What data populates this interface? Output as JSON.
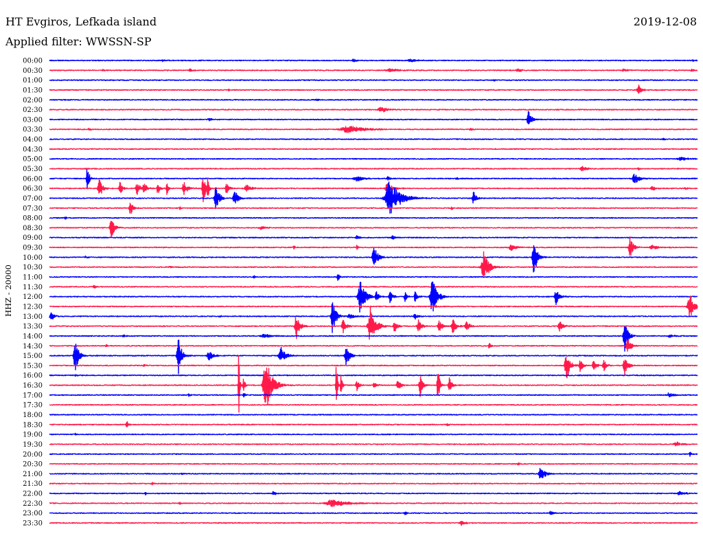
{
  "chart_data": {
    "type": "line",
    "title": "HT Evgiros, Lefkada island",
    "date": "2019-12-08",
    "filter_label": "Applied filter: WWSSN-SP",
    "ylabel": "HHZ - 20000",
    "row_labels": [
      "00:00",
      "00:30",
      "01:00",
      "01:30",
      "02:00",
      "02:30",
      "03:00",
      "03:30",
      "04:00",
      "04:30",
      "05:00",
      "05:30",
      "06:00",
      "06:30",
      "07:00",
      "07:30",
      "08:00",
      "08:30",
      "09:00",
      "09:30",
      "10:00",
      "10:30",
      "11:00",
      "11:30",
      "12:00",
      "12:30",
      "13:00",
      "13:30",
      "14:00",
      "14:30",
      "15:00",
      "15:30",
      "16:00",
      "16:30",
      "17:00",
      "17:30",
      "18:00",
      "18:30",
      "19:00",
      "19:30",
      "20:00",
      "20:30",
      "21:00",
      "21:30",
      "22:00",
      "22:30",
      "23:00",
      "23:30"
    ],
    "trace_colors": [
      "#0000ff",
      "#ff1a4a"
    ],
    "events": [
      {
        "time": "00:05:15",
        "amp": 2000,
        "dur_s": 10
      },
      {
        "time": "00:14:05",
        "amp": 4000,
        "dur_s": 20
      },
      {
        "time": "00:16:43",
        "amp": 3500,
        "dur_s": 30
      },
      {
        "time": "00:29:48",
        "amp": 2000,
        "dur_s": 10
      },
      {
        "time": "00:32:29",
        "amp": 2500,
        "dur_s": 10
      },
      {
        "time": "00:36:31",
        "amp": 4000,
        "dur_s": 15
      },
      {
        "time": "00:45:48",
        "amp": 3000,
        "dur_s": 60
      },
      {
        "time": "00:51:42",
        "amp": 3500,
        "dur_s": 30
      },
      {
        "time": "00:56:34",
        "amp": 3500,
        "dur_s": 20
      },
      {
        "time": "00:59:44",
        "amp": 3000,
        "dur_s": 10
      },
      {
        "time": "01:20:35",
        "amp": 1800,
        "dur_s": 10
      },
      {
        "time": "01:38:17",
        "amp": 3500,
        "dur_s": 8
      },
      {
        "time": "01:57:16",
        "amp": 12500,
        "dur_s": 20
      },
      {
        "time": "02:12:23",
        "amp": 2500,
        "dur_s": 10
      },
      {
        "time": "02:45:21",
        "amp": 6500,
        "dur_s": 40
      },
      {
        "time": "03:07:24",
        "amp": 3000,
        "dur_s": 20
      },
      {
        "time": "03:22:11",
        "amp": 18000,
        "dur_s": 20
      },
      {
        "time": "03:31:50",
        "amp": 2500,
        "dur_s": 10
      },
      {
        "time": "03:43:51",
        "amp": 7000,
        "dur_s": 100
      },
      {
        "time": "03:49:29",
        "amp": 2500,
        "dur_s": 15
      },
      {
        "time": "04:28:26",
        "amp": 3000,
        "dur_s": 8
      },
      {
        "time": "05:29:14",
        "amp": 4000,
        "dur_s": 40
      },
      {
        "time": "05:54:40",
        "amp": 5500,
        "dur_s": 30
      },
      {
        "time": "05:57:16",
        "amp": 3500,
        "dur_s": 10
      },
      {
        "time": "06:01:45",
        "amp": 37000,
        "dur_s": 10
      },
      {
        "time": "06:14:14",
        "amp": 6000,
        "dur_s": 40
      },
      {
        "time": "06:15:40",
        "amp": 4000,
        "dur_s": 20
      },
      {
        "time": "06:18:50",
        "amp": 3000,
        "dur_s": 10
      },
      {
        "time": "06:27:06",
        "amp": 11000,
        "dur_s": 30
      },
      {
        "time": "06:32:19",
        "amp": 20000,
        "dur_s": 20
      },
      {
        "time": "06:33:16",
        "amp": 15000,
        "dur_s": 15
      },
      {
        "time": "06:34:04",
        "amp": 13000,
        "dur_s": 20
      },
      {
        "time": "06:34:23",
        "amp": 16000,
        "dur_s": 15
      },
      {
        "time": "06:35:01",
        "amp": 12000,
        "dur_s": 15
      },
      {
        "time": "06:35:26",
        "amp": 17000,
        "dur_s": 10
      },
      {
        "time": "06:36:14",
        "amp": 17000,
        "dur_s": 20
      },
      {
        "time": "06:37:07",
        "amp": 45000,
        "dur_s": 12
      },
      {
        "time": "06:37:20",
        "amp": 25000,
        "dur_s": 10
      },
      {
        "time": "06:38:12",
        "amp": 13000,
        "dur_s": 15
      },
      {
        "time": "06:39:09",
        "amp": 8000,
        "dur_s": 30
      },
      {
        "time": "06:45:40",
        "amp": 12000,
        "dur_s": 30
      },
      {
        "time": "06:57:54",
        "amp": 6000,
        "dur_s": 20
      },
      {
        "time": "06:59:25",
        "amp": 5000,
        "dur_s": 10
      },
      {
        "time": "07:07:43",
        "amp": 28000,
        "dur_s": 20
      },
      {
        "time": "07:08:35",
        "amp": 18000,
        "dur_s": 20
      },
      {
        "time": "07:15:46",
        "amp": 40000,
        "dur_s": 60
      },
      {
        "time": "07:19:38",
        "amp": 15000,
        "dur_s": 15
      },
      {
        "time": "07:33:45",
        "amp": 17000,
        "dur_s": 15
      },
      {
        "time": "07:36:02",
        "amp": 4000,
        "dur_s": 10
      },
      {
        "time": "07:48:37",
        "amp": 3000,
        "dur_s": 10
      },
      {
        "time": "08:00:44",
        "amp": 3000,
        "dur_s": 10
      },
      {
        "time": "08:32:52",
        "amp": 22000,
        "dur_s": 20
      },
      {
        "time": "08:39:47",
        "amp": 3500,
        "dur_s": 30
      },
      {
        "time": "09:14:14",
        "amp": 5000,
        "dur_s": 15
      },
      {
        "time": "09:15:53",
        "amp": 5000,
        "dur_s": 15
      },
      {
        "time": "09:41:19",
        "amp": 4000,
        "dur_s": 10
      },
      {
        "time": "09:44:14",
        "amp": 5000,
        "dur_s": 8
      },
      {
        "time": "09:51:23",
        "amp": 7000,
        "dur_s": 30
      },
      {
        "time": "09:56:53",
        "amp": 24000,
        "dur_s": 20
      },
      {
        "time": "09:57:54",
        "amp": 5000,
        "dur_s": 30
      },
      {
        "time": "10:01:41",
        "amp": 3000,
        "dur_s": 10
      },
      {
        "time": "10:15:02",
        "amp": 21000,
        "dur_s": 25
      },
      {
        "time": "10:22:26",
        "amp": 42000,
        "dur_s": 20
      },
      {
        "time": "10:35:35",
        "amp": 3000,
        "dur_s": 10
      },
      {
        "time": "10:50:07",
        "amp": 34000,
        "dur_s": 30
      },
      {
        "time": "11:09:28",
        "amp": 3000,
        "dur_s": 10
      },
      {
        "time": "11:13:21",
        "amp": 10000,
        "dur_s": 10
      },
      {
        "time": "11:32:04",
        "amp": 6000,
        "dur_s": 10
      },
      {
        "time": "12:14:24",
        "amp": 36000,
        "dur_s": 30
      },
      {
        "time": "12:15:08",
        "amp": 12000,
        "dur_s": 15
      },
      {
        "time": "12:15:46",
        "amp": 14000,
        "dur_s": 15
      },
      {
        "time": "12:16:28",
        "amp": 10000,
        "dur_s": 15
      },
      {
        "time": "12:16:56",
        "amp": 11000,
        "dur_s": 15
      },
      {
        "time": "12:17:44",
        "amp": 39000,
        "dur_s": 30
      },
      {
        "time": "12:23:27",
        "amp": 17000,
        "dur_s": 20
      },
      {
        "time": "12:47:53",
        "amp": 3000,
        "dur_s": 10
      },
      {
        "time": "12:59:39",
        "amp": 24000,
        "dur_s": 30
      },
      {
        "time": "13:00:06",
        "amp": 8000,
        "dur_s": 20
      },
      {
        "time": "13:07:53",
        "amp": 3000,
        "dur_s": 10
      },
      {
        "time": "13:13:07",
        "amp": 39000,
        "dur_s": 20
      },
      {
        "time": "13:13:55",
        "amp": 6000,
        "dur_s": 30
      },
      {
        "time": "13:16:56",
        "amp": 6000,
        "dur_s": 20
      },
      {
        "time": "13:41:26",
        "amp": 28000,
        "dur_s": 20
      },
      {
        "time": "13:43:36",
        "amp": 14000,
        "dur_s": 20
      },
      {
        "time": "13:44:52",
        "amp": 42000,
        "dur_s": 30
      },
      {
        "time": "13:45:59",
        "amp": 12000,
        "dur_s": 20
      },
      {
        "time": "13:47:06",
        "amp": 14000,
        "dur_s": 20
      },
      {
        "time": "13:48:03",
        "amp": 12000,
        "dur_s": 20
      },
      {
        "time": "13:48:41",
        "amp": 16000,
        "dur_s": 20
      },
      {
        "time": "13:49:19",
        "amp": 10000,
        "dur_s": 20
      },
      {
        "time": "13:53:37",
        "amp": 13000,
        "dur_s": 20
      },
      {
        "time": "14:03:26",
        "amp": 3500,
        "dur_s": 10
      },
      {
        "time": "14:09:57",
        "amp": 5000,
        "dur_s": 40
      },
      {
        "time": "14:26:38",
        "amp": 34000,
        "dur_s": 20
      },
      {
        "time": "14:28:42",
        "amp": 3500,
        "dur_s": 30
      },
      {
        "time": "14:32:38",
        "amp": 3000,
        "dur_s": 10
      },
      {
        "time": "14:50:22",
        "amp": 8000,
        "dur_s": 10
      },
      {
        "time": "14:56:47",
        "amp": 15000,
        "dur_s": 20
      },
      {
        "time": "15:01:12",
        "amp": 36000,
        "dur_s": 20
      },
      {
        "time": "15:05:58",
        "amp": 40000,
        "dur_s": 20
      },
      {
        "time": "15:07:24",
        "amp": 9000,
        "dur_s": 30
      },
      {
        "time": "15:10:44",
        "amp": 17000,
        "dur_s": 30
      },
      {
        "time": "15:13:45",
        "amp": 24000,
        "dur_s": 20
      },
      {
        "time": "15:34:23",
        "amp": 3000,
        "dur_s": 10
      },
      {
        "time": "15:53:56",
        "amp": 36000,
        "dur_s": 20
      },
      {
        "time": "15:54:34",
        "amp": 15000,
        "dur_s": 15
      },
      {
        "time": "15:55:12",
        "amp": 15000,
        "dur_s": 15
      },
      {
        "time": "15:55:40",
        "amp": 13000,
        "dur_s": 15
      },
      {
        "time": "15:56:38",
        "amp": 21000,
        "dur_s": 20
      },
      {
        "time": "16:01:12",
        "amp": 3000,
        "dur_s": 10
      },
      {
        "time": "16:38:46",
        "amp": 90000,
        "dur_s": 5
      },
      {
        "time": "16:38:59",
        "amp": 18000,
        "dur_s": 10
      },
      {
        "time": "16:40:02",
        "amp": 55000,
        "dur_s": 40
      },
      {
        "time": "16:43:17",
        "amp": 75000,
        "dur_s": 6
      },
      {
        "time": "16:43:30",
        "amp": 50000,
        "dur_s": 6
      },
      {
        "time": "16:44:14",
        "amp": 12000,
        "dur_s": 15
      },
      {
        "time": "16:45:02",
        "amp": 8000,
        "dur_s": 15
      },
      {
        "time": "16:46:08",
        "amp": 15000,
        "dur_s": 15
      },
      {
        "time": "16:47:10",
        "amp": 24000,
        "dur_s": 15
      },
      {
        "time": "16:47:59",
        "amp": 45000,
        "dur_s": 10
      },
      {
        "time": "16:48:31",
        "amp": 15000,
        "dur_s": 15
      },
      {
        "time": "17:06:27",
        "amp": 4000,
        "dur_s": 10
      },
      {
        "time": "17:09:00",
        "amp": 6000,
        "dur_s": 10
      },
      {
        "time": "17:28:42",
        "amp": 5000,
        "dur_s": 30
      },
      {
        "time": "18:33:35",
        "amp": 12000,
        "dur_s": 10
      },
      {
        "time": "18:48:26",
        "amp": 4000,
        "dur_s": 10
      },
      {
        "time": "19:01:12",
        "amp": 3000,
        "dur_s": 10
      },
      {
        "time": "19:59:01",
        "amp": 5000,
        "dur_s": 30
      },
      {
        "time": "20:29:39",
        "amp": 5000,
        "dur_s": 10
      },
      {
        "time": "20:51:42",
        "amp": 3000,
        "dur_s": 10
      },
      {
        "time": "21:06:08",
        "amp": 2500,
        "dur_s": 10
      },
      {
        "time": "21:22:45",
        "amp": 16000,
        "dur_s": 25
      },
      {
        "time": "21:34:46",
        "amp": 3500,
        "dur_s": 10
      },
      {
        "time": "22:04:27",
        "amp": 2500,
        "dur_s": 10
      },
      {
        "time": "22:10:22",
        "amp": 5000,
        "dur_s": 15
      },
      {
        "time": "22:29:10",
        "amp": 3500,
        "dur_s": 40
      },
      {
        "time": "22:36:02",
        "amp": 2500,
        "dur_s": 10
      },
      {
        "time": "22:43:07",
        "amp": 7000,
        "dur_s": 90
      },
      {
        "time": "23:16:28",
        "amp": 4000,
        "dur_s": 10
      },
      {
        "time": "23:23:12",
        "amp": 6000,
        "dur_s": 15
      },
      {
        "time": "23:49:04",
        "amp": 6000,
        "dur_s": 20
      }
    ]
  }
}
